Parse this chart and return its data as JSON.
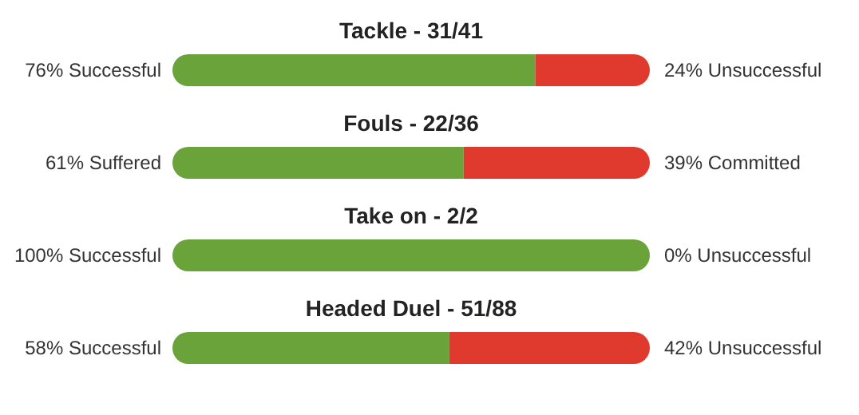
{
  "chart_data": {
    "type": "bar",
    "orientation": "horizontal",
    "stacked": true,
    "xlim": [
      0,
      100
    ],
    "categories": [
      "Tackle - 31/41",
      "Fouls - 22/36",
      "Take on - 2/2",
      "Headed Duel - 51/88"
    ],
    "series": [
      {
        "color": "#6aa339",
        "values": [
          76,
          61,
          100,
          58
        ],
        "value_labels": [
          "76% Successful",
          "61% Suffered",
          "100% Successful",
          "58% Successful"
        ]
      },
      {
        "color": "#e03a2e",
        "values": [
          24,
          39,
          0,
          42
        ],
        "value_labels": [
          "24% Unsuccessful",
          "39% Committed",
          "0% Unsuccessful",
          "42% Unsuccessful"
        ]
      }
    ]
  }
}
